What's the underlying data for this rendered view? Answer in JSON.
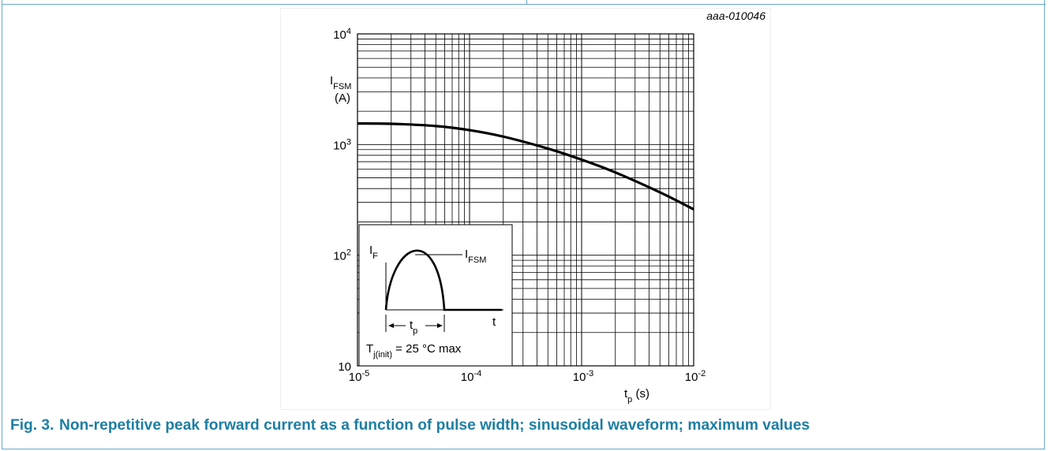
{
  "page": {
    "figure_number": "Fig. 3.",
    "caption": "Non-repetitive peak forward current as a function of pulse width; sinusoidal waveform; maximum values"
  },
  "chart_data": {
    "type": "line",
    "figure_id": "aaa-010046",
    "x_scale": "log",
    "y_scale": "log",
    "xlim": [
      1e-05,
      0.01
    ],
    "ylim": [
      10,
      10000
    ],
    "grid": true,
    "ylabel": {
      "symbol": "I",
      "subscript": "FSM",
      "unit": "(A)"
    },
    "xlabel": {
      "symbol": "t",
      "subscript": "p",
      "unit": "(s)"
    },
    "x_ticks": [
      {
        "base": "10",
        "exp": "-5"
      },
      {
        "base": "10",
        "exp": "-4"
      },
      {
        "base": "10",
        "exp": "-3"
      },
      {
        "base": "10",
        "exp": "-2"
      }
    ],
    "y_ticks": [
      {
        "base": "10",
        "exp": ""
      },
      {
        "base": "10",
        "exp": "2"
      },
      {
        "base": "10",
        "exp": "3"
      },
      {
        "base": "10",
        "exp": "4"
      }
    ],
    "series": [
      {
        "x": [
          1e-05,
          2e-05,
          5e-05,
          0.0001,
          0.0002,
          0.0005,
          0.001,
          0.002,
          0.005,
          0.01
        ],
        "y": [
          1550,
          1540,
          1470,
          1350,
          1180,
          920,
          730,
          560,
          370,
          260
        ]
      }
    ],
    "inset": {
      "if_label": "I",
      "if_sub": "F",
      "ifsm_label": "I",
      "ifsm_sub": "FSM",
      "t_label": "t",
      "tp_label": "t",
      "tp_sub": "p",
      "tj_label": "T",
      "tj_sub": "j(init)",
      "tj_value": " = 25 °C max"
    }
  }
}
